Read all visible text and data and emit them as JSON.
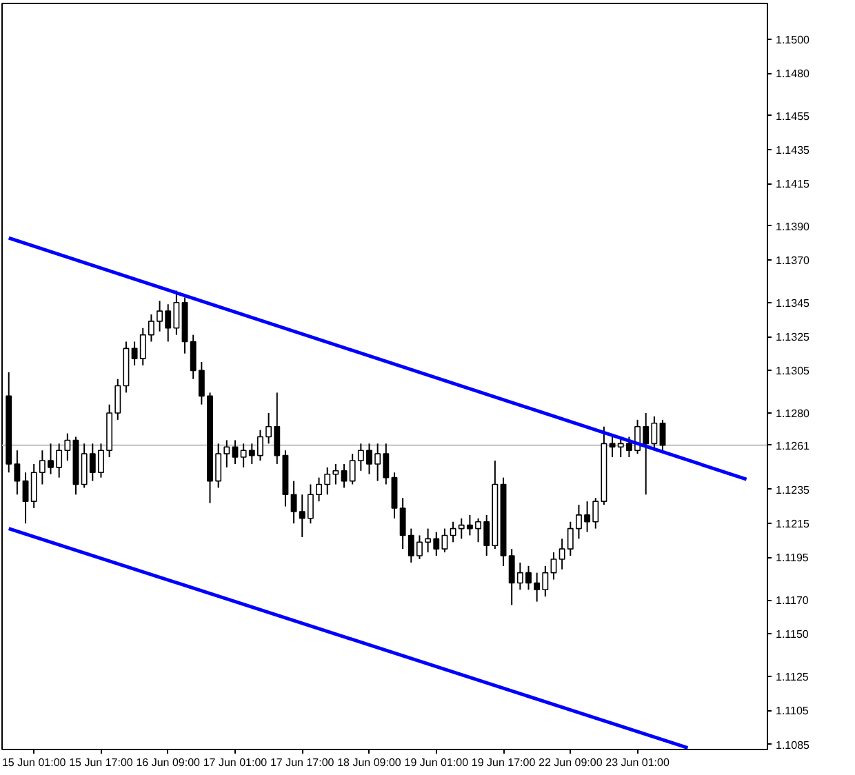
{
  "chart_data": {
    "type": "candlestick",
    "ylim": [
      1.1082,
      1.1521
    ],
    "categories": [
      null,
      null,
      null,
      "15 Jun 01:00",
      null,
      null,
      null,
      null,
      null,
      null,
      null,
      "15 Jun 17:00",
      null,
      null,
      null,
      null,
      null,
      null,
      null,
      "16 Jun 09:00",
      null,
      null,
      null,
      null,
      null,
      null,
      null,
      "17 Jun 01:00",
      null,
      null,
      null,
      null,
      null,
      null,
      null,
      "17 Jun 17:00",
      null,
      null,
      null,
      null,
      null,
      null,
      null,
      "18 Jun 09:00",
      null,
      null,
      null,
      null,
      null,
      null,
      null,
      "19 Jun 01:00",
      null,
      null,
      null,
      null,
      null,
      null,
      null,
      "19 Jun 17:00",
      null,
      null,
      null,
      null,
      null,
      null,
      null,
      "22 Jun 09:00",
      null,
      null,
      null,
      null,
      null,
      null,
      null,
      "23 Jun 01:00",
      null,
      null,
      null,
      null,
      null,
      null,
      null,
      null,
      null,
      null,
      null,
      null,
      null,
      null,
      null
    ],
    "yticks": [
      {
        "value": 1.15,
        "label": "1.1500"
      },
      {
        "value": 1.148,
        "label": "1.1480"
      },
      {
        "value": 1.1455,
        "label": "1.1455"
      },
      {
        "value": 1.1435,
        "label": "1.1435"
      },
      {
        "value": 1.1415,
        "label": "1.1415"
      },
      {
        "value": 1.139,
        "label": "1.1390"
      },
      {
        "value": 1.137,
        "label": "1.1370"
      },
      {
        "value": 1.1345,
        "label": "1.1345"
      },
      {
        "value": 1.1325,
        "label": "1.1325"
      },
      {
        "value": 1.1305,
        "label": "1.1305"
      },
      {
        "value": 1.128,
        "label": "1.1280"
      },
      {
        "value": 1.1235,
        "label": "1.1235"
      },
      {
        "value": 1.1215,
        "label": "1.1215"
      },
      {
        "value": 1.1195,
        "label": "1.1195"
      },
      {
        "value": 1.117,
        "label": "1.1170"
      },
      {
        "value": 1.115,
        "label": "1.1150"
      },
      {
        "value": 1.1125,
        "label": "1.1125"
      },
      {
        "value": 1.1105,
        "label": "1.1105"
      },
      {
        "value": 1.1085,
        "label": "1.1085"
      }
    ],
    "series": [
      {
        "color": "#000000",
        "ohlc": [
          [
            1.129,
            1.1304,
            1.1245,
            1.125
          ],
          [
            1.125,
            1.1258,
            1.1232,
            1.124
          ],
          [
            1.124,
            1.1245,
            1.1215,
            1.1228
          ],
          [
            1.1228,
            1.125,
            1.1224,
            1.1245
          ],
          [
            1.1245,
            1.1258,
            1.1238,
            1.1252
          ],
          [
            1.1252,
            1.1262,
            1.1244,
            1.1248
          ],
          [
            1.1248,
            1.1262,
            1.1242,
            1.1258
          ],
          [
            1.1258,
            1.1268,
            1.1252,
            1.1264
          ],
          [
            1.1264,
            1.1266,
            1.1232,
            1.1238
          ],
          [
            1.1238,
            1.1262,
            1.1236,
            1.1256
          ],
          [
            1.1256,
            1.1262,
            1.124,
            1.1245
          ],
          [
            1.1245,
            1.1262,
            1.1242,
            1.1258
          ],
          [
            1.1258,
            1.1285,
            1.1254,
            1.128
          ],
          [
            1.128,
            1.13,
            1.1276,
            1.1296
          ],
          [
            1.1296,
            1.1322,
            1.1292,
            1.1318
          ],
          [
            1.1318,
            1.1322,
            1.1308,
            1.1312
          ],
          [
            1.1312,
            1.133,
            1.1308,
            1.1326
          ],
          [
            1.1326,
            1.1338,
            1.1322,
            1.1334
          ],
          [
            1.1334,
            1.1346,
            1.1328,
            1.134
          ],
          [
            1.134,
            1.1344,
            1.1322,
            1.133
          ],
          [
            1.133,
            1.1352,
            1.1326,
            1.1345
          ],
          [
            1.1345,
            1.1348,
            1.1315,
            1.1322
          ],
          [
            1.1322,
            1.1326,
            1.13,
            1.1305
          ],
          [
            1.1305,
            1.131,
            1.1285,
            1.129
          ],
          [
            1.129,
            1.1292,
            1.1227,
            1.124
          ],
          [
            1.124,
            1.1262,
            1.1236,
            1.1256
          ],
          [
            1.1256,
            1.1264,
            1.1248,
            1.126
          ],
          [
            1.126,
            1.1264,
            1.125,
            1.1254
          ],
          [
            1.1254,
            1.1262,
            1.1248,
            1.1258
          ],
          [
            1.1258,
            1.1262,
            1.125,
            1.1255
          ],
          [
            1.1255,
            1.127,
            1.1252,
            1.1266
          ],
          [
            1.1266,
            1.128,
            1.1262,
            1.1272
          ],
          [
            1.1272,
            1.1292,
            1.125,
            1.1255
          ],
          [
            1.1255,
            1.1258,
            1.1225,
            1.1232
          ],
          [
            1.1232,
            1.124,
            1.1215,
            1.1222
          ],
          [
            1.1222,
            1.1232,
            1.1207,
            1.1218
          ],
          [
            1.1218,
            1.1238,
            1.1215,
            1.1232
          ],
          [
            1.1232,
            1.1242,
            1.1228,
            1.1238
          ],
          [
            1.1238,
            1.1248,
            1.1232,
            1.1244
          ],
          [
            1.1244,
            1.125,
            1.1238,
            1.1246
          ],
          [
            1.1246,
            1.125,
            1.1236,
            1.124
          ],
          [
            1.124,
            1.1256,
            1.1238,
            1.1252
          ],
          [
            1.1252,
            1.1262,
            1.1246,
            1.1258
          ],
          [
            1.1258,
            1.1262,
            1.1244,
            1.125
          ],
          [
            1.125,
            1.1262,
            1.124,
            1.1256
          ],
          [
            1.1256,
            1.1262,
            1.1238,
            1.1242
          ],
          [
            1.1242,
            1.1245,
            1.1218,
            1.1224
          ],
          [
            1.1224,
            1.123,
            1.12,
            1.1208
          ],
          [
            1.1208,
            1.1212,
            1.1192,
            1.1196
          ],
          [
            1.1196,
            1.1208,
            1.1194,
            1.1204
          ],
          [
            1.1204,
            1.1212,
            1.1198,
            1.1206
          ],
          [
            1.1206,
            1.121,
            1.1196,
            1.12
          ],
          [
            1.12,
            1.1212,
            1.1198,
            1.1208
          ],
          [
            1.1208,
            1.1216,
            1.1204,
            1.1212
          ],
          [
            1.1212,
            1.1218,
            1.1206,
            1.1214
          ],
          [
            1.1214,
            1.122,
            1.1208,
            1.1212
          ],
          [
            1.1212,
            1.1218,
            1.1204,
            1.1216
          ],
          [
            1.1216,
            1.122,
            1.1196,
            1.1202
          ],
          [
            1.1202,
            1.1252,
            1.12,
            1.1238
          ],
          [
            1.1238,
            1.1242,
            1.119,
            1.1196
          ],
          [
            1.1196,
            1.12,
            1.1167,
            1.118
          ],
          [
            1.118,
            1.1192,
            1.1176,
            1.1186
          ],
          [
            1.1186,
            1.119,
            1.1176,
            1.118
          ],
          [
            1.118,
            1.1186,
            1.1169,
            1.1176
          ],
          [
            1.1176,
            1.119,
            1.1172,
            1.1186
          ],
          [
            1.1186,
            1.1198,
            1.1182,
            1.1194
          ],
          [
            1.1194,
            1.1206,
            1.1188,
            1.12
          ],
          [
            1.12,
            1.1216,
            1.1196,
            1.1212
          ],
          [
            1.1212,
            1.1226,
            1.1206,
            1.122
          ],
          [
            1.122,
            1.1228,
            1.121,
            1.1216
          ],
          [
            1.1216,
            1.123,
            1.1212,
            1.1228
          ],
          [
            1.1228,
            1.1272,
            1.1226,
            1.1262
          ],
          [
            1.1262,
            1.1266,
            1.1254,
            1.126
          ],
          [
            1.126,
            1.1266,
            1.1254,
            1.1262
          ],
          [
            1.1262,
            1.1266,
            1.1254,
            1.1258
          ],
          [
            1.1258,
            1.1276,
            1.1256,
            1.1272
          ],
          [
            1.1272,
            1.128,
            1.1232,
            1.1262
          ],
          [
            1.1262,
            1.1278,
            1.1258,
            1.1274
          ],
          [
            1.1274,
            1.1276,
            1.1258,
            1.1261
          ],
          null,
          null,
          null,
          null,
          null,
          null,
          null,
          null,
          null,
          null,
          null,
          null
        ]
      },
      {
        "type": "line",
        "color": "#0000ff",
        "values": [
          1.1383,
          null,
          null,
          null,
          null,
          null,
          null,
          null,
          null,
          null,
          null,
          null,
          null,
          null,
          null,
          null,
          null,
          null,
          null,
          null,
          null,
          null,
          null,
          null,
          null,
          null,
          null,
          null,
          null,
          null,
          null,
          null,
          null,
          null,
          null,
          null,
          null,
          null,
          null,
          null,
          null,
          null,
          null,
          null,
          null,
          null,
          null,
          null,
          null,
          null,
          null,
          null,
          null,
          null,
          null,
          null,
          null,
          null,
          null,
          null,
          null,
          null,
          null,
          null,
          null,
          null,
          null,
          null,
          null,
          null,
          null,
          null,
          null,
          null,
          null,
          null,
          null,
          null,
          null,
          null,
          null,
          null,
          null,
          null,
          null,
          null,
          null,
          null,
          1.1241,
          null,
          null
        ]
      },
      {
        "type": "line",
        "color": "#0000ff",
        "values": [
          1.1212,
          null,
          null,
          null,
          null,
          null,
          null,
          null,
          null,
          null,
          null,
          null,
          null,
          null,
          null,
          null,
          null,
          null,
          null,
          null,
          null,
          null,
          null,
          null,
          null,
          null,
          null,
          null,
          null,
          null,
          null,
          null,
          null,
          null,
          null,
          null,
          null,
          null,
          null,
          null,
          null,
          null,
          null,
          null,
          null,
          null,
          null,
          null,
          null,
          null,
          null,
          null,
          null,
          null,
          null,
          null,
          null,
          null,
          null,
          null,
          null,
          null,
          null,
          null,
          null,
          null,
          null,
          null,
          null,
          null,
          null,
          null,
          null,
          null,
          null,
          null,
          null,
          null,
          null,
          null,
          null,
          1.1083,
          null,
          null,
          null,
          null,
          null,
          null,
          null,
          null,
          null
        ]
      }
    ],
    "ref_lines": [
      {
        "axis": "y",
        "value": 1.1261,
        "label": "1.1261",
        "color": "#c0c0c0"
      }
    ]
  }
}
